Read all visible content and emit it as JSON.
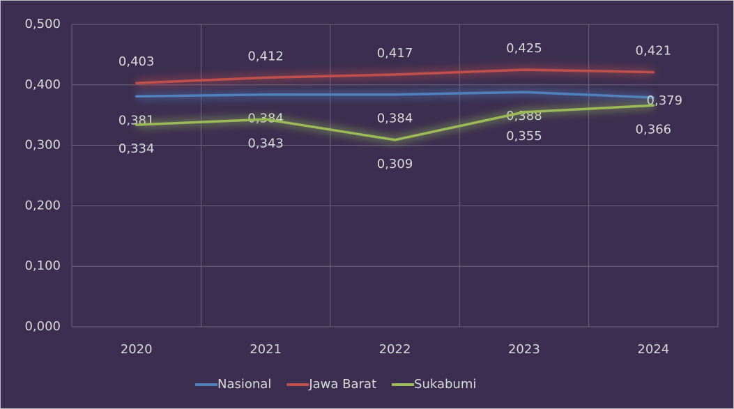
{
  "chart_data": {
    "type": "line",
    "categories": [
      "2020",
      "2021",
      "2022",
      "2023",
      "2024"
    ],
    "series": [
      {
        "name": "Nasional",
        "color": "#4f81bd",
        "values": [
          0.381,
          0.384,
          0.384,
          0.388,
          0.379
        ],
        "value_labels": [
          "0,381",
          "0,384",
          "0,384",
          "0,388",
          "0,379"
        ]
      },
      {
        "name": "Jawa Barat",
        "color": "#c0504d",
        "values": [
          0.403,
          0.412,
          0.417,
          0.425,
          0.421
        ],
        "value_labels": [
          "0,403",
          "0,412",
          "0,417",
          "0,425",
          "0,421"
        ]
      },
      {
        "name": "Sukabumi",
        "color": "#9bbb59",
        "values": [
          0.334,
          0.343,
          0.309,
          0.355,
          0.366
        ],
        "value_labels": [
          "0,334",
          "0,343",
          "0,309",
          "0,355",
          "0,366"
        ]
      }
    ],
    "ylim": [
      0,
      0.5
    ],
    "yticks": [
      {
        "value": 0,
        "label": "0,000"
      },
      {
        "value": 0.1,
        "label": "0,100"
      },
      {
        "value": 0.2,
        "label": "0,200"
      },
      {
        "value": 0.3,
        "label": "0,300"
      },
      {
        "value": 0.4,
        "label": "0,400"
      },
      {
        "value": 0.5,
        "label": "0,500"
      }
    ],
    "grid": true,
    "legend": "bottom"
  }
}
